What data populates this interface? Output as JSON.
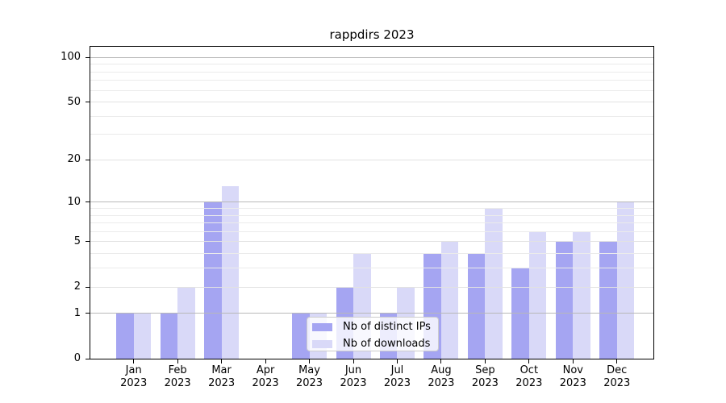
{
  "title": "rappdirs 2023",
  "chart_data": {
    "type": "bar",
    "title": "rappdirs 2023",
    "categories": [
      "Jan",
      "Feb",
      "Mar",
      "Apr",
      "May",
      "Jun",
      "Jul",
      "Aug",
      "Sep",
      "Oct",
      "Nov",
      "Dec"
    ],
    "year": "2023",
    "series": [
      {
        "name": "Nb of distinct IPs",
        "color": "#a5a5f2",
        "values": [
          1,
          1,
          10,
          0,
          1,
          2,
          1,
          4,
          4,
          3,
          5,
          5
        ]
      },
      {
        "name": "Nb of downloads",
        "color": "#d9d9f8",
        "values": [
          1,
          2,
          13,
          0,
          1,
          4,
          2,
          5,
          9,
          6,
          6,
          10
        ]
      }
    ],
    "yscale": "log10(1+v)",
    "yticks": [
      0,
      1,
      2,
      5,
      10,
      20,
      50,
      100
    ],
    "ytick_labels": [
      "0",
      "1",
      "2",
      "5",
      "10",
      "20",
      "50",
      "100"
    ],
    "ylim": [
      0,
      117
    ],
    "grid": {
      "major": [
        1,
        10,
        100
      ],
      "mid": [
        2,
        5,
        20,
        50
      ],
      "minor": [
        3,
        4,
        6,
        7,
        8,
        9,
        30,
        40,
        60,
        70,
        80,
        90
      ]
    },
    "legend_position": "lower center",
    "axis_color": "#000000",
    "grid_major_color": "#b8b8b8",
    "grid_minor_color": "#ebebeb"
  }
}
